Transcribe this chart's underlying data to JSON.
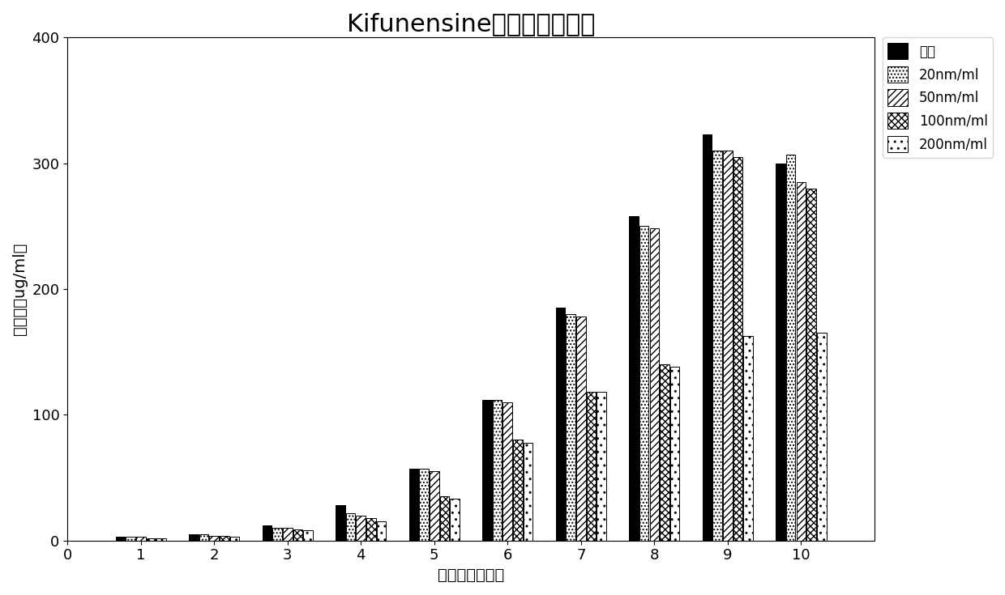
{
  "title": "Kifunensine对表达量的影响",
  "xlabel": "培养时间（天）",
  "ylabel": "表达量（ug/ml）",
  "days": [
    1,
    2,
    3,
    4,
    5,
    6,
    7,
    8,
    9,
    10
  ],
  "series_control": [
    3,
    5,
    12,
    28,
    57,
    112,
    185,
    258,
    323,
    300
  ],
  "series_20nm": [
    3,
    5,
    10,
    22,
    57,
    112,
    180,
    250,
    310,
    307
  ],
  "series_50nm": [
    3,
    4,
    10,
    20,
    55,
    110,
    178,
    248,
    310,
    285
  ],
  "series_100nm": [
    2,
    4,
    9,
    18,
    35,
    80,
    118,
    140,
    305,
    280
  ],
  "series_200nm": [
    2,
    3,
    8,
    15,
    33,
    78,
    118,
    138,
    163,
    165
  ],
  "legend_labels": [
    "对照",
    "20nm/ml",
    "50nm/ml",
    "100nm/ml",
    "200nm/ml"
  ],
  "ylim": [
    0,
    400
  ],
  "yticks": [
    0,
    100,
    200,
    300,
    400
  ],
  "xticks": [
    0,
    1,
    2,
    3,
    4,
    5,
    6,
    7,
    8,
    9,
    10
  ],
  "title_fontsize": 22,
  "axis_label_fontsize": 14,
  "tick_fontsize": 13,
  "legend_fontsize": 12,
  "bar_width": 0.14,
  "xlim_left": 0.2,
  "xlim_right": 11.0
}
